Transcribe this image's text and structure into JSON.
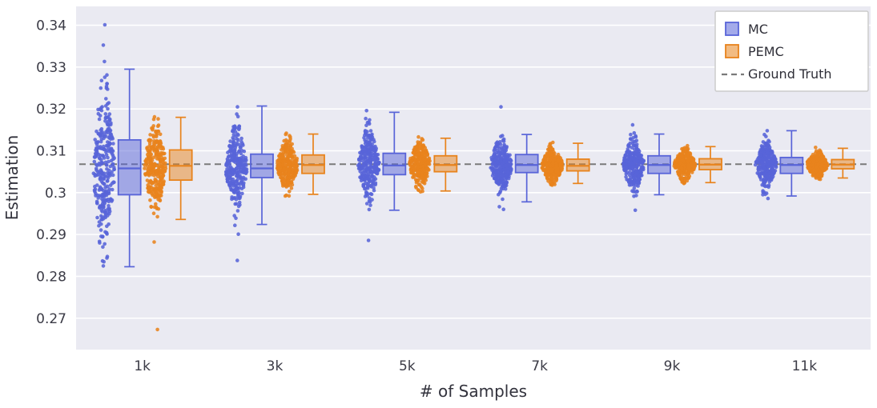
{
  "chart_data": {
    "type": "boxplot-with-strip",
    "title": "",
    "xlabel": "# of Samples",
    "ylabel": "Estimation",
    "categories": [
      "1k",
      "3k",
      "5k",
      "7k",
      "9k",
      "11k"
    ],
    "yticks": [
      0.27,
      0.28,
      0.29,
      0.3,
      0.31,
      0.32,
      0.33,
      0.34
    ],
    "ylim": [
      0.2625,
      0.3445
    ],
    "ground_truth": 0.3068,
    "grid": "horizontal-only",
    "legend_position": "top-right",
    "colors": {
      "plot_bg": "#eaeaf2",
      "grid": "#ffffff",
      "mc": "#5864d8",
      "pemc": "#e8831c",
      "ground_truth": "#7a7a7a",
      "text": "#32323c"
    },
    "legend": [
      {
        "label": "MC",
        "color": "#5864d8",
        "type": "box"
      },
      {
        "label": "PEMC",
        "color": "#e8831c",
        "type": "box"
      },
      {
        "label": "Ground Truth",
        "color": "#7a7a7a",
        "type": "dashed-line"
      }
    ],
    "series": [
      {
        "name": "MC",
        "color": "#5864d8",
        "boxes": [
          {
            "category": "1k",
            "whisker_low": 0.2823,
            "q1": 0.2995,
            "median": 0.3058,
            "q3": 0.3126,
            "whisker_high": 0.3295,
            "points": {
              "count": 300,
              "center": 0.306,
              "std": 0.0097,
              "min": 0.2825,
              "max": 0.3401
            }
          },
          {
            "category": "3k",
            "whisker_low": 0.2924,
            "q1": 0.3036,
            "median": 0.3058,
            "q3": 0.3092,
            "whisker_high": 0.3207,
            "points": {
              "count": 280,
              "center": 0.306,
              "std": 0.0046,
              "min": 0.2838,
              "max": 0.3205
            }
          },
          {
            "category": "5k",
            "whisker_low": 0.2958,
            "q1": 0.3043,
            "median": 0.3065,
            "q3": 0.3094,
            "whisker_high": 0.3192,
            "points": {
              "count": 280,
              "center": 0.3065,
              "std": 0.004,
              "min": 0.2886,
              "max": 0.3196
            }
          },
          {
            "category": "7k",
            "whisker_low": 0.2978,
            "q1": 0.3048,
            "median": 0.3066,
            "q3": 0.3091,
            "whisker_high": 0.3139,
            "points": {
              "count": 280,
              "center": 0.3066,
              "std": 0.0032,
              "min": 0.296,
              "max": 0.3205
            }
          },
          {
            "category": "9k",
            "whisker_low": 0.2995,
            "q1": 0.3046,
            "median": 0.3066,
            "q3": 0.3088,
            "whisker_high": 0.314,
            "points": {
              "count": 280,
              "center": 0.3066,
              "std": 0.003,
              "min": 0.2958,
              "max": 0.3162
            }
          },
          {
            "category": "11k",
            "whisker_low": 0.2992,
            "q1": 0.3046,
            "median": 0.3066,
            "q3": 0.3084,
            "whisker_high": 0.3148,
            "points": {
              "count": 280,
              "center": 0.3066,
              "std": 0.0026,
              "min": 0.2986,
              "max": 0.3148
            }
          }
        ]
      },
      {
        "name": "PEMC",
        "color": "#e8831c",
        "boxes": [
          {
            "category": "1k",
            "whisker_low": 0.2936,
            "q1": 0.303,
            "median": 0.3064,
            "q3": 0.3102,
            "whisker_high": 0.318,
            "points": {
              "count": 300,
              "center": 0.3062,
              "std": 0.0053,
              "min": 0.2673,
              "max": 0.3181
            }
          },
          {
            "category": "3k",
            "whisker_low": 0.2996,
            "q1": 0.3046,
            "median": 0.3066,
            "q3": 0.309,
            "whisker_high": 0.314,
            "points": {
              "count": 280,
              "center": 0.3066,
              "std": 0.0029,
              "min": 0.2992,
              "max": 0.3142
            }
          },
          {
            "category": "5k",
            "whisker_low": 0.3004,
            "q1": 0.305,
            "median": 0.3066,
            "q3": 0.3088,
            "whisker_high": 0.313,
            "points": {
              "count": 280,
              "center": 0.3066,
              "std": 0.0027,
              "min": 0.3002,
              "max": 0.3133
            }
          },
          {
            "category": "7k",
            "whisker_low": 0.3022,
            "q1": 0.3052,
            "median": 0.3064,
            "q3": 0.308,
            "whisker_high": 0.3118,
            "points": {
              "count": 280,
              "center": 0.3065,
              "std": 0.0021,
              "min": 0.3018,
              "max": 0.312
            }
          },
          {
            "category": "9k",
            "whisker_low": 0.3024,
            "q1": 0.3055,
            "median": 0.3067,
            "q3": 0.3081,
            "whisker_high": 0.311,
            "points": {
              "count": 280,
              "center": 0.3067,
              "std": 0.0018,
              "min": 0.3022,
              "max": 0.3112
            }
          },
          {
            "category": "11k",
            "whisker_low": 0.3035,
            "q1": 0.3057,
            "median": 0.3067,
            "q3": 0.3079,
            "whisker_high": 0.3106,
            "points": {
              "count": 280,
              "center": 0.3067,
              "std": 0.0015,
              "min": 0.3032,
              "max": 0.3108
            }
          }
        ]
      }
    ]
  }
}
